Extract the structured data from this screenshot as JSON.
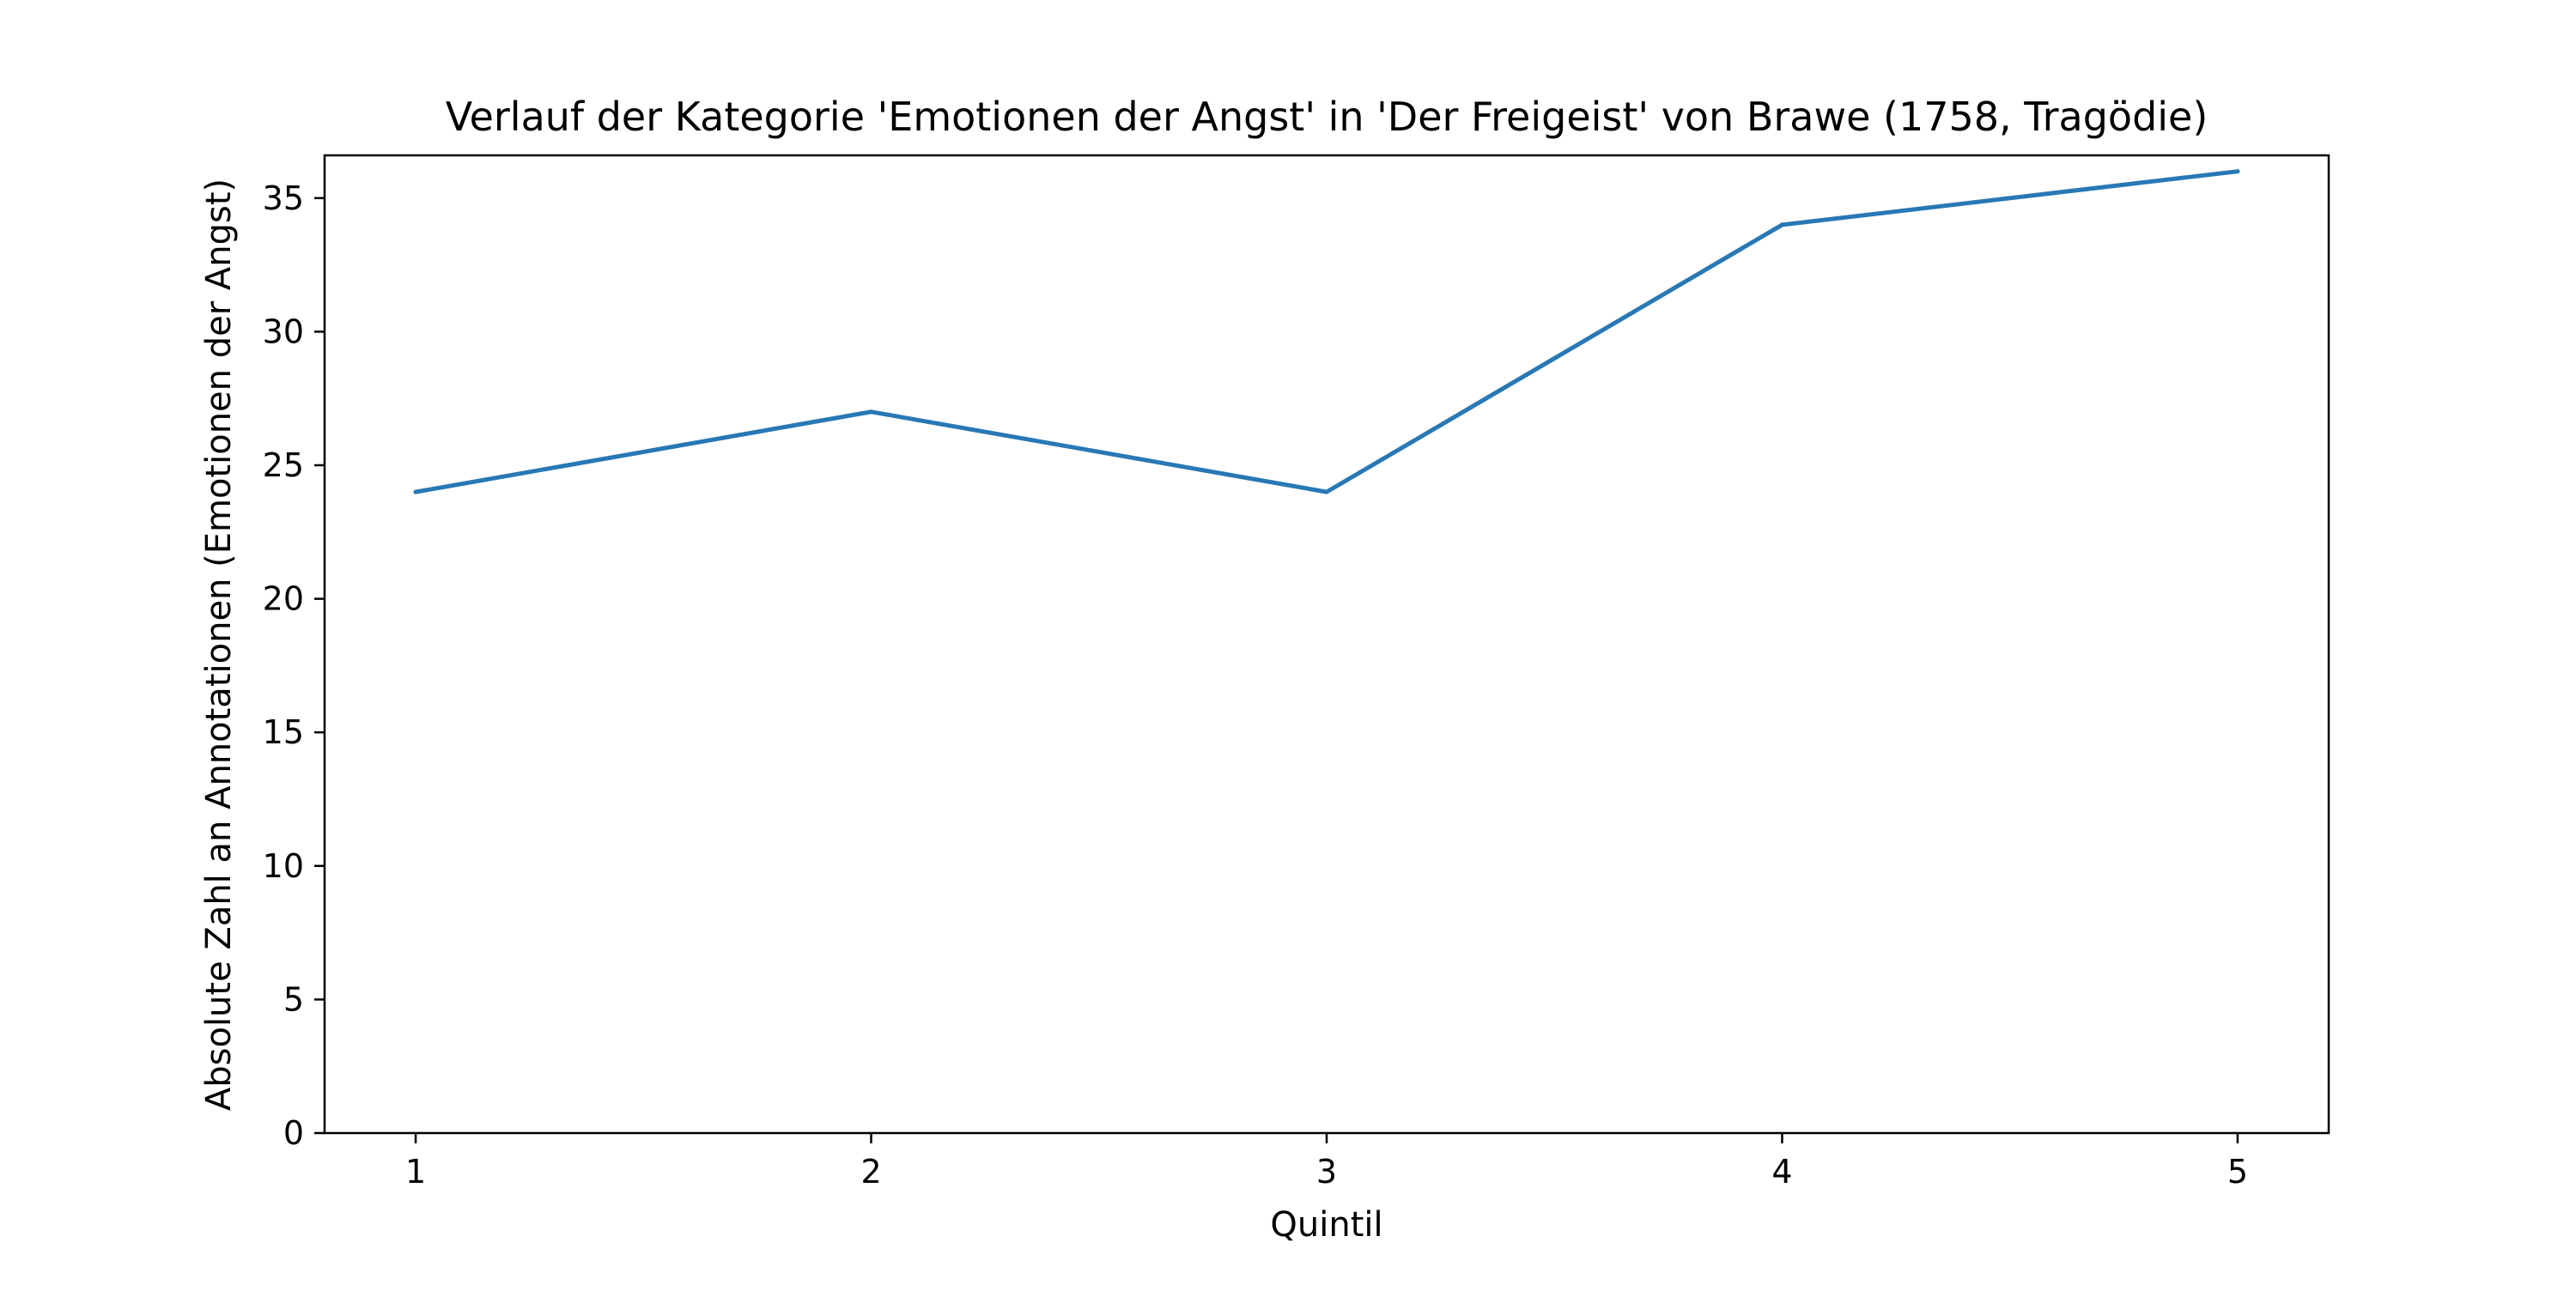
{
  "chart_data": {
    "type": "line",
    "title": "Verlauf der Kategorie 'Emotionen der Angst' in 'Der Freigeist' von Brawe (1758, Tragödie)",
    "xlabel": "Quintil",
    "ylabel": "Absolute Zahl an Annotationen (Emotionen der Angst)",
    "x": [
      1,
      2,
      3,
      4,
      5
    ],
    "series": [
      {
        "values": [
          24,
          27,
          24,
          34,
          36
        ]
      }
    ],
    "xlim": [
      0.8,
      5.2
    ],
    "ylim": [
      0,
      36.6
    ],
    "xticks": [
      "1",
      "2",
      "3",
      "4",
      "5"
    ],
    "yticks": [
      "0",
      "5",
      "10",
      "15",
      "20",
      "25",
      "30",
      "35"
    ],
    "grid": false,
    "legend": "none",
    "colors": {
      "line": "#2878b5",
      "axes": "#000000"
    }
  }
}
